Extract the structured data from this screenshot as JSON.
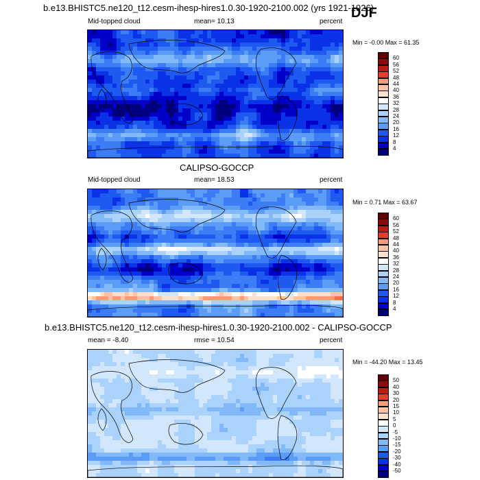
{
  "figure": {
    "main_title": "b.e13.BHISTC5.ne120_t12.cesm-ihesp-hires1.0.30-1920-2100.002 (yrs 1921-1926)",
    "season": "DJF"
  },
  "colors": {
    "model_obs_scale": [
      "#00007f",
      "#0000c8",
      "#0a32e6",
      "#1e5af0",
      "#3c7cf4",
      "#5a9cf6",
      "#82b9f8",
      "#aad2fa",
      "#d2e6fc",
      "#ffffff",
      "#fde0cc",
      "#fcc4a4",
      "#fa9c76",
      "#f47048",
      "#e0402a",
      "#b81e14",
      "#8c0a0a",
      "#600000"
    ],
    "diff_scale": [
      "#00007f",
      "#0000c8",
      "#0a32e6",
      "#1e5af0",
      "#3c7cf4",
      "#5a9cf6",
      "#82b9f8",
      "#aad2fa",
      "#d2e6fc",
      "#ffffff",
      "#fde0cc",
      "#fcc4a4",
      "#fa9c76",
      "#f47048",
      "#e0402a",
      "#b81e14",
      "#8c0a0a",
      "#600000"
    ]
  },
  "panels": [
    {
      "title": "",
      "left_label": "Mid-topped cloud",
      "stat_label": "mean=  10.13",
      "units": "percent",
      "minmax": "Min =  -0.00 Max =  61.35",
      "colorbar_ticks": [
        "60",
        "56",
        "52",
        "48",
        "44",
        "40",
        "36",
        "32",
        "28",
        "24",
        "20",
        "16",
        "12",
        "8",
        "4"
      ]
    },
    {
      "title": "CALIPSO-GOCCP",
      "left_label": "Mid-topped cloud",
      "stat_label": "mean=  18.53",
      "units": "percent",
      "minmax": "Min =   0.71 Max =  63.67",
      "colorbar_ticks": [
        "60",
        "56",
        "52",
        "48",
        "44",
        "40",
        "36",
        "32",
        "28",
        "24",
        "20",
        "16",
        "12",
        "8",
        "4"
      ]
    },
    {
      "title": "b.e13.BHISTC5.ne120_t12.cesm-ihesp-hires1.0.30-1920-2100.002 - CALIPSO-GOCCP",
      "left_label": "mean =   -8.40",
      "stat_label": "rmse =  10.54",
      "units": "percent",
      "minmax": "Min = -44.20 Max =  13.45",
      "colorbar_ticks": [
        "50",
        "40",
        "30",
        "20",
        "15",
        "10",
        "5",
        "0",
        "-5",
        "-10",
        "-15",
        "-20",
        "-30",
        "-40",
        "-50"
      ]
    }
  ],
  "chart_data": [
    {
      "type": "heatmap",
      "title": "b.e13.BHISTC5.ne120_t12.cesm-ihesp-hires1.0.30-1920-2100.002 (yrs 1921-1926)",
      "variable": "Mid-topped cloud",
      "units": "percent",
      "season": "DJF",
      "mean": 10.13,
      "min": -0.0,
      "max": 61.35,
      "colorbar_levels": [
        4,
        8,
        12,
        16,
        20,
        24,
        28,
        32,
        36,
        40,
        44,
        48,
        52,
        56,
        60
      ]
    },
    {
      "type": "heatmap",
      "title": "CALIPSO-GOCCP",
      "variable": "Mid-topped cloud",
      "units": "percent",
      "mean": 18.53,
      "min": 0.71,
      "max": 63.67,
      "colorbar_levels": [
        4,
        8,
        12,
        16,
        20,
        24,
        28,
        32,
        36,
        40,
        44,
        48,
        52,
        56,
        60
      ]
    },
    {
      "type": "heatmap",
      "title": "b.e13.BHISTC5.ne120_t12.cesm-ihesp-hires1.0.30-1920-2100.002 - CALIPSO-GOCCP",
      "units": "percent",
      "mean": -8.4,
      "rmse": 10.54,
      "min": -44.2,
      "max": 13.45,
      "colorbar_levels": [
        -50,
        -40,
        -30,
        -20,
        -15,
        -10,
        -5,
        0,
        5,
        10,
        15,
        20,
        30,
        40,
        50
      ]
    }
  ]
}
